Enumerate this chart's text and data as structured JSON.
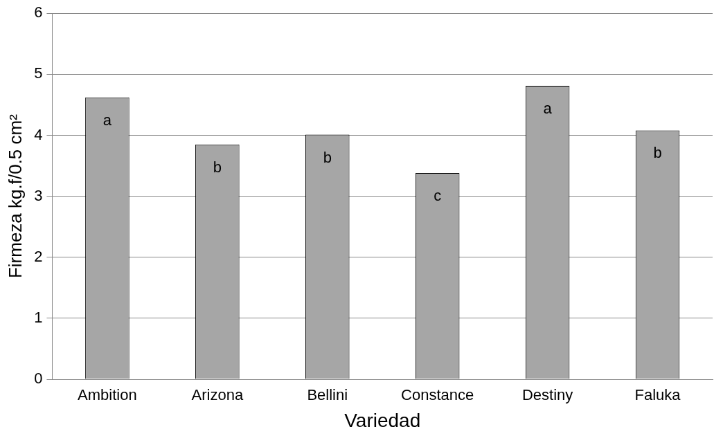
{
  "chart_data": {
    "type": "bar",
    "xlabel": "Variedad",
    "ylabel": "Firmeza kg.f/0.5 cm²",
    "categories": [
      "Ambition",
      "Arizona",
      "Bellini",
      "Constance",
      "Destiny",
      "Faluka"
    ],
    "values": [
      4.62,
      3.85,
      4.01,
      3.38,
      4.81,
      4.08
    ],
    "color": "#a6a6a6",
    "ylim": [
      0,
      6
    ],
    "yticks": [
      0,
      1,
      2,
      3,
      4,
      5,
      6
    ],
    "grid": "y",
    "legend": false,
    "annotations": [
      "a",
      "b",
      "b",
      "c",
      "a",
      "b"
    ]
  }
}
